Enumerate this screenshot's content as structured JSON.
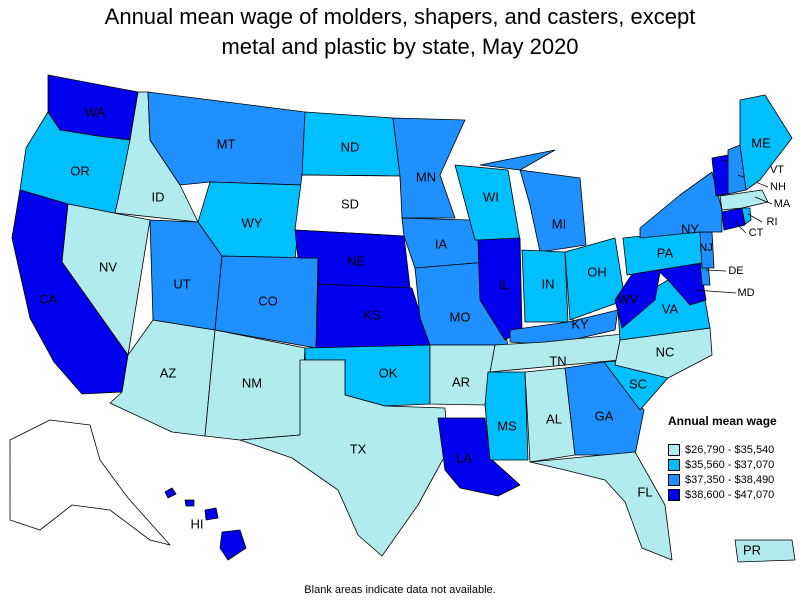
{
  "title_line1": "Annual mean wage of molders, shapers, and casters, except",
  "title_line2": "metal and plastic by state, May 2020",
  "legend": {
    "title": "Annual mean wage",
    "items": [
      {
        "label": "$26,790 - $35,540",
        "color": "#b2ebee"
      },
      {
        "label": "$35,560 - $37,070",
        "color": "#00bfff"
      },
      {
        "label": "$37,350 - $38,490",
        "color": "#1e90ff"
      },
      {
        "label": "$38,600 - $47,070",
        "color": "#0000ee"
      }
    ]
  },
  "no_data_color": "#ffffff",
  "note": "Blank areas indicate data not available.",
  "states": [
    {
      "abbr": "WA",
      "class": 3
    },
    {
      "abbr": "OR",
      "class": 1
    },
    {
      "abbr": "CA",
      "class": 3
    },
    {
      "abbr": "ID",
      "class": 0
    },
    {
      "abbr": "NV",
      "class": 0
    },
    {
      "abbr": "AZ",
      "class": 0
    },
    {
      "abbr": "UT",
      "class": 2
    },
    {
      "abbr": "MT",
      "class": 2
    },
    {
      "abbr": "WY",
      "class": 1
    },
    {
      "abbr": "CO",
      "class": 2
    },
    {
      "abbr": "NM",
      "class": 0
    },
    {
      "abbr": "ND",
      "class": 1
    },
    {
      "abbr": "SD",
      "class": null
    },
    {
      "abbr": "NE",
      "class": 3
    },
    {
      "abbr": "KS",
      "class": 3
    },
    {
      "abbr": "OK",
      "class": 1
    },
    {
      "abbr": "TX",
      "class": 0
    },
    {
      "abbr": "MN",
      "class": 2
    },
    {
      "abbr": "IA",
      "class": 2
    },
    {
      "abbr": "MO",
      "class": 2
    },
    {
      "abbr": "AR",
      "class": 0
    },
    {
      "abbr": "LA",
      "class": 3
    },
    {
      "abbr": "WI",
      "class": 1
    },
    {
      "abbr": "IL",
      "class": 3
    },
    {
      "abbr": "MI",
      "class": 2
    },
    {
      "abbr": "IN",
      "class": 1
    },
    {
      "abbr": "OH",
      "class": 1
    },
    {
      "abbr": "KY",
      "class": 2
    },
    {
      "abbr": "TN",
      "class": 0
    },
    {
      "abbr": "MS",
      "class": 1
    },
    {
      "abbr": "AL",
      "class": 0
    },
    {
      "abbr": "GA",
      "class": 2
    },
    {
      "abbr": "FL",
      "class": 0
    },
    {
      "abbr": "SC",
      "class": 1
    },
    {
      "abbr": "NC",
      "class": 0
    },
    {
      "abbr": "VA",
      "class": 1
    },
    {
      "abbr": "WV",
      "class": 3
    },
    {
      "abbr": "MD",
      "class": 3
    },
    {
      "abbr": "DE",
      "class": 2
    },
    {
      "abbr": "PA",
      "class": 1
    },
    {
      "abbr": "NJ",
      "class": 2
    },
    {
      "abbr": "NY",
      "class": 2
    },
    {
      "abbr": "CT",
      "class": 3
    },
    {
      "abbr": "RI",
      "class": 1
    },
    {
      "abbr": "MA",
      "class": 0
    },
    {
      "abbr": "VT",
      "class": 3
    },
    {
      "abbr": "NH",
      "class": 2
    },
    {
      "abbr": "ME",
      "class": 1
    },
    {
      "abbr": "AK",
      "class": null
    },
    {
      "abbr": "HI",
      "class": 3
    },
    {
      "abbr": "PR",
      "class": 0
    }
  ]
}
